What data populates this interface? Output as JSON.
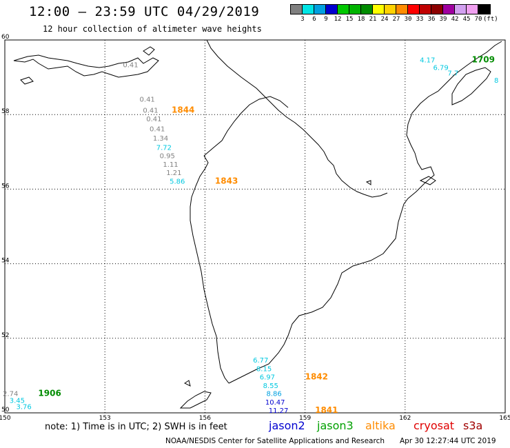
{
  "header": {
    "title": "12:00 – 23:59 UTC 04/29/2019",
    "subtitle": "12 hour collection of altimeter wave heights"
  },
  "legend": {
    "colors": [
      "#808080",
      "#00e5e5",
      "#00a0e0",
      "#0000d0",
      "#00c800",
      "#00b400",
      "#008c00",
      "#ffff00",
      "#ffd200",
      "#ff8c00",
      "#ff0000",
      "#c00000",
      "#8c0000",
      "#a000a0",
      "#d2a0f0",
      "#f0a0f0",
      "#000000"
    ],
    "labels": [
      "3",
      "6",
      "9",
      "12",
      "15",
      "18",
      "21",
      "24",
      "27",
      "30",
      "33",
      "36",
      "39",
      "42",
      "45",
      "70",
      "(ft)"
    ]
  },
  "map": {
    "lon_ticks": [
      "150",
      "153",
      "156",
      "159",
      "162",
      "165"
    ],
    "lat_ticks": [
      "60",
      "58",
      "56",
      "54",
      "52",
      "50"
    ],
    "lon_range": [
      150,
      165
    ],
    "lat_range": [
      50,
      60
    ]
  },
  "tracks": [
    {
      "time": "1844",
      "time_color": "#ff8c00",
      "points": [
        {
          "lon": 154.0,
          "lat": 59.27,
          "swh": "0.41",
          "color": "#808080"
        },
        {
          "lon": 154.5,
          "lat": 58.35,
          "swh": "0.41",
          "color": "#808080"
        },
        {
          "lon": 154.6,
          "lat": 58.05,
          "swh": "0.41",
          "color": "#808080"
        },
        {
          "lon": 154.7,
          "lat": 57.82,
          "swh": "0.41",
          "color": "#808080"
        },
        {
          "lon": 154.8,
          "lat": 57.55,
          "swh": "0.41",
          "color": "#808080"
        },
        {
          "lon": 154.9,
          "lat": 57.3,
          "swh": "1.34",
          "color": "#808080"
        },
        {
          "lon": 155.0,
          "lat": 57.05,
          "swh": "7.72",
          "color": "#00c8e0"
        },
        {
          "lon": 155.1,
          "lat": 56.83,
          "swh": "0.95",
          "color": "#808080"
        },
        {
          "lon": 155.2,
          "lat": 56.6,
          "swh": "1.11",
          "color": "#808080"
        },
        {
          "lon": 155.3,
          "lat": 56.38,
          "swh": "1.21",
          "color": "#808080"
        },
        {
          "lon": 155.4,
          "lat": 56.15,
          "swh": "5.86",
          "color": "#00c8e0"
        }
      ]
    },
    {
      "time": "1843",
      "time_color": "#ff8c00",
      "points": []
    },
    {
      "time": "1709",
      "time_color": "#008c00",
      "points": [
        {
          "lon": 162.9,
          "lat": 59.4,
          "swh": "4.17",
          "color": "#00c8e0"
        },
        {
          "lon": 163.3,
          "lat": 59.2,
          "swh": "6.79",
          "color": "#00c8e0"
        },
        {
          "lon": 163.6,
          "lat": 59.05,
          "swh": "7.7",
          "color": "#00c8e0"
        },
        {
          "lon": 164.8,
          "lat": 58.85,
          "swh": "8",
          "color": "#00c8e0"
        }
      ]
    },
    {
      "time": "1842",
      "time_color": "#ff8c00",
      "points": [
        {
          "lon": 157.9,
          "lat": 51.35,
          "swh": "6.77",
          "color": "#00c8e0"
        },
        {
          "lon": 158.0,
          "lat": 51.12,
          "swh": "8.15",
          "color": "#00c8e0"
        },
        {
          "lon": 158.1,
          "lat": 50.9,
          "swh": "6.97",
          "color": "#00c8e0"
        },
        {
          "lon": 158.2,
          "lat": 50.67,
          "swh": "8.55",
          "color": "#00c8e0"
        },
        {
          "lon": 158.3,
          "lat": 50.45,
          "swh": "8.86",
          "color": "#00a0e0"
        },
        {
          "lon": 158.4,
          "lat": 50.22,
          "swh": "10.47",
          "color": "#0000d0"
        },
        {
          "lon": 158.5,
          "lat": 50.0,
          "swh": "11.27",
          "color": "#0000d0"
        }
      ]
    },
    {
      "time": "1841",
      "time_color": "#ff8c00",
      "points": []
    },
    {
      "time": "1906",
      "time_color": "#008c00",
      "points": [
        {
          "lon": 150.4,
          "lat": 50.45,
          "swh": "2.74",
          "color": "#808080"
        },
        {
          "lon": 150.6,
          "lat": 50.27,
          "swh": "3.45",
          "color": "#00c8e0"
        },
        {
          "lon": 150.8,
          "lat": 50.1,
          "swh": "3.76",
          "color": "#00c8e0"
        }
      ]
    }
  ],
  "footer": {
    "note": "note: 1) Time is in UTC; 2) SWH is in feet",
    "satellites": [
      {
        "name": "jason2",
        "color": "#0000d0"
      },
      {
        "name": "jason3",
        "color": "#00a000"
      },
      {
        "name": "altika",
        "color": "#ff8c00"
      },
      {
        "name": "cryosat",
        "color": "#e00000"
      },
      {
        "name": "s3a",
        "color": "#a00000"
      }
    ],
    "credit": "NOAA/NESDIS Center for Satellite Applications and Research",
    "generated": "Apr 30 12:27:44 UTC 2019"
  }
}
